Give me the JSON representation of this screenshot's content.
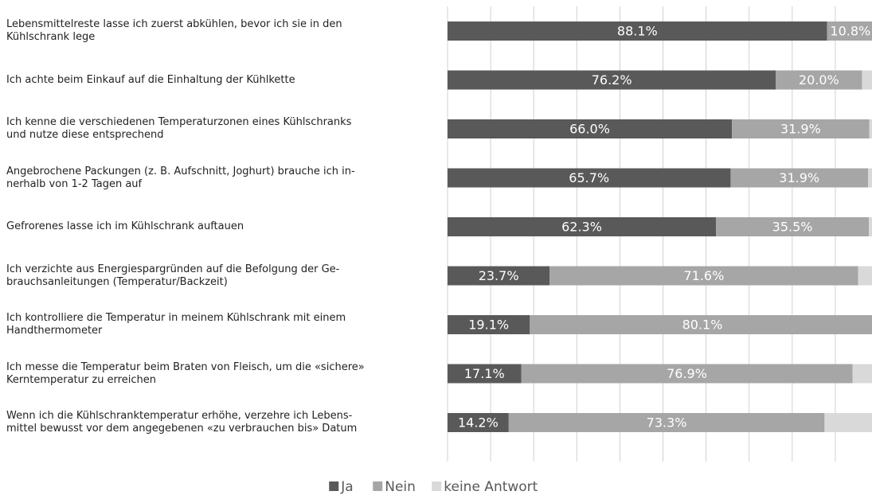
{
  "chart_data": {
    "type": "stacked-bar-horizontal",
    "categories": [
      "Lebensmittelreste lasse ich zuerst abkühlen, bevor ich sie in den\nKühlschrank lege",
      "Ich achte beim Einkauf auf die Einhaltung der Kühlkette",
      "Ich kenne die verschiedenen Temperaturzonen eines Kühlschranks\nund nutze diese entsprechend",
      "Angebrochene Packungen (z. B. Aufschnitt, Joghurt) brauche ich in-\nnerhalb von 1-2 Tagen auf",
      "Gefrorenes lasse ich im Kühlschrank auftauen",
      "Ich verzichte aus Energiespargründen auf die Befolgung der Ge-\nbrauchsanleitungen (Temperatur/Backzeit)",
      "Ich kontrolliere die Temperatur in meinem Kühlschrank mit einem\nHandthermometer",
      "Ich messe die Temperatur beim Braten von Fleisch, um die «sichere»\nKerntemperatur zu erreichen",
      "Wenn ich die Kühlschranktemperatur erhöhe, verzehre ich Lebens-\nmittel bewusst vor dem angegebenen «zu verbrauchen bis» Datum"
    ],
    "series": [
      {
        "name": "Ja",
        "color": "#595959",
        "values": [
          88.1,
          76.2,
          66.0,
          65.7,
          62.3,
          23.7,
          19.1,
          17.1,
          14.2
        ],
        "value_labels": [
          "88.1%",
          "76.2%",
          "66.0%",
          "65.7%",
          "62.3%",
          "23.7%",
          "19.1%",
          "17.1%",
          "14.2%"
        ]
      },
      {
        "name": "Nein",
        "color": "#a6a6a6",
        "values": [
          10.8,
          20.0,
          31.9,
          31.9,
          35.5,
          71.6,
          80.1,
          76.9,
          73.3
        ],
        "value_labels": [
          "10.8%",
          "20.0%",
          "31.9%",
          "31.9%",
          "35.5%",
          "71.6%",
          "80.1%",
          "76.9%",
          "73.3%"
        ]
      },
      {
        "name": "keine Antwort",
        "color": "#d9d9d9",
        "values": [
          1.1,
          3.8,
          2.1,
          2.4,
          2.2,
          4.7,
          0.8,
          6.0,
          12.5
        ]
      }
    ],
    "xlim": [
      0,
      100
    ],
    "xticks": [
      0,
      10,
      20,
      30,
      40,
      50,
      60,
      70,
      80,
      90,
      100
    ],
    "grid": true,
    "legend": "bottom"
  }
}
